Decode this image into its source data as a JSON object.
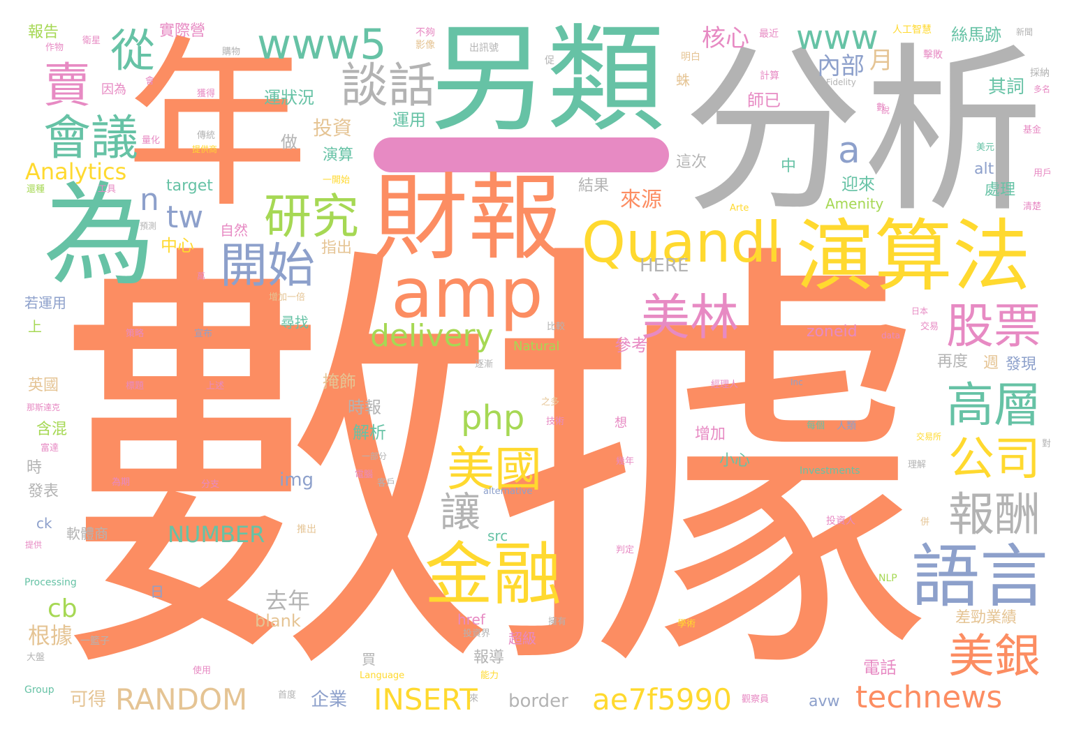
{
  "colors": {
    "orange": "#fc8d62",
    "teal": "#66c2a5",
    "gray": "#b3b3b3",
    "yellow": "#ffd92f",
    "blue": "#8da0cb",
    "green": "#a6d854",
    "pink": "#e78ac3",
    "tan": "#e5c494"
  },
  "words": {
    "w1": "數據",
    "w2": "分析",
    "w3": "年",
    "w4": "另類",
    "w5": "財報",
    "w6": "為",
    "w7": "amp",
    "w8": "演算法",
    "w9": "Quandl",
    "w10": "金融",
    "w11": "語言",
    "w12": "美林",
    "w13": "美國",
    "w14": "開始",
    "w15": "研究",
    "w16": "會議",
    "w17": "談話",
    "w18": "賣",
    "w19": "從",
    "w20": "www5",
    "w21": "www",
    "w22": "a",
    "w23": "股票",
    "w24": "高層",
    "w25": "公司",
    "w26": "報酬",
    "w27": "美銀",
    "w28": "technews",
    "w29": "ae7f5990",
    "w30": "INSERT",
    "w31": "RANDOM",
    "w32": "delivery",
    "w33": "php",
    "w34": "讓",
    "w35": "tw",
    "w36": "n",
    "w37": "Analytics",
    "w38": "核心",
    "w39": "內部",
    "w40": "月",
    "w41": "絲馬跡",
    "w42": "其詞",
    "w43": "師已",
    "w44": "運狀況",
    "w45": "運用",
    "w46": "投資",
    "w47": "做",
    "w48": "演算",
    "w49": "實際營",
    "w50": "報告",
    "w51": "因為",
    "w52": "target",
    "w53": "來源",
    "w54": "結果",
    "w55": "中心",
    "w56": "自然",
    "w57": "HERE",
    "w58": "指出",
    "w59": "這次",
    "w60": "中",
    "w61": "迎來",
    "w62": "處理",
    "w63": "alt",
    "w64": "Amenity",
    "w65": "NUMBER",
    "w66": "cb",
    "w67": "去年",
    "w68": "根據",
    "w69": "blank",
    "w70": "border",
    "w71": "企業",
    "w72": "可得",
    "w73": "zoneid",
    "w74": "再度",
    "w75": "週",
    "w76": "發現",
    "w77": "差勁業績",
    "w78": "電話",
    "w79": "avw",
    "w80": "img",
    "w81": "時報",
    "w82": "解析",
    "w83": "掩飾",
    "w84": "參考",
    "w85": "增加",
    "w86": "小心",
    "w87": "英國",
    "w88": "含混",
    "w89": "發表",
    "w90": "上",
    "w91": "若運用",
    "w92": "時",
    "w93": "軟體商",
    "w94": "日",
    "w95": "href",
    "w96": "超級",
    "w97": "報導",
    "w98": "買",
    "w99": "src",
    "w100": "尋找",
    "w101": "Natural",
    "w102": "想",
    "w103": "Investments",
    "w104": "alternative",
    "w105": "Processing",
    "w106": "Group",
    "w107": "Language",
    "w108": "NLP",
    "w109": "data",
    "w110": "Fidelity",
    "w111": "Inc",
    "w112": "ck",
    "w113": "蛛",
    "w114": "一部分",
    "w115": "不夠",
    "w116": "影像",
    "w117": "出訊號",
    "w118": "人工智慧",
    "w119": "擊敗",
    "w120": "最近",
    "w121": "新聞",
    "w122": "明白",
    "w123": "作物",
    "w124": "衛星",
    "w125": "購物",
    "w126": "獲得",
    "w127": "傳統",
    "w128": "提供商",
    "w129": "量化",
    "w130": "工具",
    "w131": "還種",
    "w132": "預測",
    "w133": "計算",
    "w134": "採納",
    "w135": "多名",
    "w136": "基金",
    "w137": "美元",
    "w138": "用戶",
    "w139": "清楚",
    "w140": "交易",
    "w141": "交易所",
    "w142": "理解",
    "w143": "對",
    "w144": "人類",
    "w145": "每個",
    "w146": "經理人",
    "w147": "策略",
    "w148": "宣布",
    "w149": "標題",
    "w150": "上述",
    "w151": "那斯達克",
    "w152": "富達",
    "w153": "為期",
    "w154": "分支",
    "w155": "一開始",
    "w156": "增加一倍",
    "w157": "萬",
    "w158": "電腦",
    "w159": "客戶",
    "w160": "推出",
    "w161": "提供",
    "w162": "使用",
    "w163": "大盤",
    "w164": "一籃子",
    "w165": "首度",
    "w166": "觀察員",
    "w167": "投資人",
    "w168": "投資界",
    "w169": "能力",
    "w170": "技術",
    "w171": "之多",
    "w172": "幾年",
    "w173": "判定",
    "w174": "擁有",
    "w175": "學術",
    "w176": "比較",
    "w177": "逐漸",
    "w178": "日本",
    "w179": "數",
    "w180": "併",
    "w181": "說",
    "w182": "來",
    "w183": "Arte",
    "w184": "促",
    "w185": "會"
  }
}
